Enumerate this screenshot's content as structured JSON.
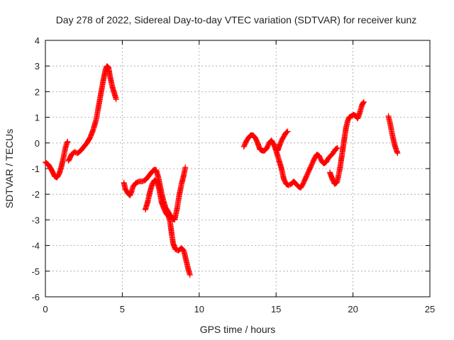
{
  "chart_data": {
    "type": "scatter",
    "title": "Day 278 of 2022, Sidereal Day-to-day VTEC variation (SDTVAR) for receiver kunz",
    "xlabel": "GPS time / hours",
    "ylabel": "SDTVAR / TECUs",
    "xlim": [
      0,
      25
    ],
    "ylim": [
      -6,
      4
    ],
    "xticks": [
      "0",
      "5",
      "10",
      "15",
      "20",
      "25"
    ],
    "yticks": [
      "-6",
      "-5",
      "-4",
      "-3",
      "-2",
      "-1",
      "0",
      "1",
      "2",
      "3",
      "4"
    ],
    "grid": true,
    "marker": "+",
    "marker_color": "#ff0000",
    "series": [
      {
        "segments": [
          [
            [
              0.0,
              -0.75
            ],
            [
              0.2,
              -0.85
            ],
            [
              0.4,
              -1.05
            ],
            [
              0.6,
              -1.3
            ],
            [
              0.75,
              -1.35
            ],
            [
              0.9,
              -1.2
            ],
            [
              1.05,
              -0.9
            ],
            [
              1.2,
              -0.5
            ],
            [
              1.3,
              -0.2
            ],
            [
              1.4,
              0.0
            ],
            [
              1.45,
              0.05
            ]
          ],
          [
            [
              1.5,
              -0.7
            ],
            [
              1.7,
              -0.45
            ],
            [
              1.9,
              -0.35
            ],
            [
              2.1,
              -0.4
            ],
            [
              2.3,
              -0.3
            ],
            [
              2.5,
              -0.15
            ],
            [
              2.7,
              0.0
            ],
            [
              2.9,
              0.2
            ],
            [
              3.1,
              0.5
            ],
            [
              3.3,
              0.9
            ],
            [
              3.45,
              1.4
            ],
            [
              3.6,
              1.9
            ],
            [
              3.75,
              2.4
            ],
            [
              3.9,
              2.85
            ],
            [
              4.0,
              3.0
            ],
            [
              4.1,
              2.95
            ],
            [
              4.2,
              2.6
            ],
            [
              4.35,
              2.2
            ],
            [
              4.5,
              1.9
            ],
            [
              4.6,
              1.7
            ]
          ],
          [
            [
              5.1,
              -1.55
            ],
            [
              5.2,
              -1.8
            ],
            [
              5.35,
              -1.95
            ],
            [
              5.5,
              -2.05
            ],
            [
              5.6,
              -1.9
            ],
            [
              5.7,
              -1.7
            ],
            [
              5.9,
              -1.55
            ],
            [
              6.1,
              -1.5
            ],
            [
              6.3,
              -1.5
            ],
            [
              6.5,
              -1.45
            ],
            [
              6.7,
              -1.3
            ],
            [
              6.9,
              -1.15
            ],
            [
              7.05,
              -1.05
            ],
            [
              7.2,
              -1.05
            ],
            [
              7.35,
              -1.35
            ],
            [
              7.5,
              -1.8
            ],
            [
              7.65,
              -2.2
            ],
            [
              7.8,
              -2.5
            ],
            [
              7.95,
              -2.65
            ],
            [
              8.1,
              -2.8
            ],
            [
              8.25,
              -2.95
            ],
            [
              8.4,
              -3.0
            ],
            [
              8.55,
              -2.6
            ],
            [
              8.7,
              -2.05
            ],
            [
              8.85,
              -1.6
            ],
            [
              9.0,
              -1.25
            ],
            [
              9.1,
              -0.95
            ]
          ],
          [
            [
              6.5,
              -2.6
            ],
            [
              6.65,
              -2.3
            ],
            [
              6.8,
              -1.9
            ],
            [
              6.95,
              -1.6
            ],
            [
              7.1,
              -1.45
            ],
            [
              7.25,
              -1.5
            ],
            [
              7.4,
              -1.8
            ],
            [
              7.55,
              -2.3
            ],
            [
              7.7,
              -2.55
            ],
            [
              7.85,
              -2.75
            ],
            [
              8.0,
              -2.85
            ],
            [
              8.1,
              -3.05
            ],
            [
              8.2,
              -3.5
            ],
            [
              8.3,
              -3.9
            ],
            [
              8.45,
              -4.15
            ],
            [
              8.65,
              -4.2
            ],
            [
              8.85,
              -4.1
            ],
            [
              9.0,
              -4.2
            ],
            [
              9.1,
              -4.45
            ],
            [
              9.2,
              -4.7
            ],
            [
              9.3,
              -4.95
            ],
            [
              9.4,
              -5.15
            ]
          ],
          [
            [
              12.9,
              -0.15
            ],
            [
              13.05,
              0.05
            ],
            [
              13.2,
              0.2
            ],
            [
              13.35,
              0.3
            ],
            [
              13.5,
              0.3
            ],
            [
              13.65,
              0.2
            ],
            [
              13.8,
              0.0
            ],
            [
              13.95,
              -0.25
            ],
            [
              14.1,
              -0.3
            ],
            [
              14.25,
              -0.3
            ],
            [
              14.4,
              -0.2
            ],
            [
              14.55,
              0.0
            ],
            [
              14.7,
              0.1
            ],
            [
              14.85,
              -0.05
            ],
            [
              15.0,
              -0.3
            ],
            [
              15.1,
              -0.5
            ],
            [
              15.2,
              -0.7
            ],
            [
              15.35,
              -1.0
            ],
            [
              15.5,
              -1.4
            ],
            [
              15.65,
              -1.6
            ],
            [
              15.8,
              -1.65
            ],
            [
              16.0,
              -1.6
            ],
            [
              16.15,
              -1.5
            ],
            [
              16.3,
              -1.6
            ],
            [
              16.45,
              -1.7
            ],
            [
              16.6,
              -1.75
            ],
            [
              16.75,
              -1.6
            ],
            [
              16.9,
              -1.4
            ],
            [
              17.05,
              -1.2
            ],
            [
              17.2,
              -1.0
            ],
            [
              17.35,
              -0.8
            ],
            [
              17.5,
              -0.6
            ],
            [
              17.65,
              -0.45
            ],
            [
              17.8,
              -0.5
            ],
            [
              17.95,
              -0.7
            ],
            [
              18.1,
              -0.8
            ],
            [
              18.25,
              -0.75
            ],
            [
              18.4,
              -0.6
            ],
            [
              18.55,
              -0.5
            ],
            [
              18.7,
              -0.4
            ],
            [
              18.85,
              -0.25
            ],
            [
              19.0,
              -0.2
            ]
          ],
          [
            [
              15.1,
              -0.3
            ],
            [
              15.25,
              -0.05
            ],
            [
              15.4,
              0.15
            ],
            [
              15.55,
              0.3
            ],
            [
              15.65,
              0.4
            ],
            [
              15.75,
              0.45
            ]
          ],
          [
            [
              18.5,
              -1.15
            ],
            [
              18.65,
              -1.4
            ],
            [
              18.8,
              -1.6
            ],
            [
              18.95,
              -1.55
            ],
            [
              19.05,
              -1.3
            ],
            [
              19.15,
              -1.0
            ],
            [
              19.25,
              -0.6
            ],
            [
              19.35,
              -0.2
            ],
            [
              19.45,
              0.2
            ],
            [
              19.55,
              0.6
            ],
            [
              19.65,
              0.85
            ],
            [
              19.75,
              1.0
            ],
            [
              19.9,
              1.05
            ],
            [
              20.05,
              1.1
            ],
            [
              20.2,
              1.05
            ],
            [
              20.3,
              0.95
            ],
            [
              20.4,
              1.1
            ],
            [
              20.5,
              1.3
            ],
            [
              20.6,
              1.5
            ],
            [
              20.7,
              1.6
            ]
          ],
          [
            [
              22.3,
              1.05
            ],
            [
              22.4,
              0.8
            ],
            [
              22.5,
              0.5
            ],
            [
              22.6,
              0.2
            ],
            [
              22.7,
              -0.05
            ],
            [
              22.8,
              -0.25
            ],
            [
              22.9,
              -0.4
            ]
          ]
        ]
      }
    ]
  }
}
